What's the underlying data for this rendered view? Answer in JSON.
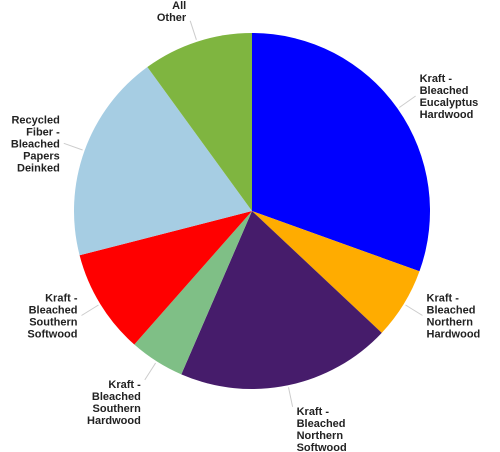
{
  "chart_data": {
    "type": "pie",
    "title": "",
    "legend": "none",
    "slices": [
      {
        "name": "Kraft - Bleached Eucalyptus Hardwood",
        "label_lines": [
          "Kraft -",
          "Bleached",
          "Eucalyptus",
          "Hardwood"
        ],
        "value": 30.5,
        "color": "#0000ff"
      },
      {
        "name": "Kraft - Bleached Northern Hardwood",
        "label_lines": [
          "Kraft -",
          "Bleached",
          "Northern",
          "Hardwood"
        ],
        "value": 6.5,
        "color": "#ffac00"
      },
      {
        "name": "Kraft - Bleached Northern Softwood",
        "label_lines": [
          "Kraft -",
          "Bleached",
          "Northern",
          "Softwood"
        ],
        "value": 19.5,
        "color": "#461c6b"
      },
      {
        "name": "Kraft - Bleached Southern Hardwood",
        "label_lines": [
          "Kraft -",
          "Bleached",
          "Southern",
          "Hardwood"
        ],
        "value": 5.0,
        "color": "#7fbf86"
      },
      {
        "name": "Kraft - Bleached Southern Softwood",
        "label_lines": [
          "Kraft -",
          "Bleached",
          "Southern",
          "Softwood"
        ],
        "value": 9.5,
        "color": "#ff0000"
      },
      {
        "name": "Recycled Fiber - Bleached Papers Deinked",
        "label_lines": [
          "Recycled",
          "Fiber -",
          "Bleached",
          "Papers",
          "Deinked"
        ],
        "value": 19.0,
        "color": "#a6cde3"
      },
      {
        "name": "All Other",
        "label_lines": [
          "All",
          "Other"
        ],
        "value": 10.0,
        "color": "#7fb540"
      }
    ]
  }
}
